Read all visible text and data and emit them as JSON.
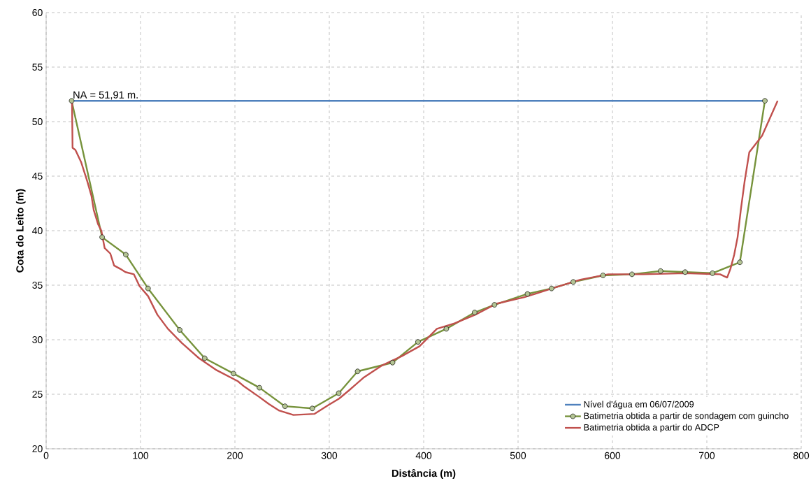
{
  "chart_data": {
    "type": "line",
    "xlabel": "Distância (m)",
    "ylabel": "Cota do Leito (m)",
    "xlim": [
      0,
      800
    ],
    "ylim": [
      20,
      60
    ],
    "xticks": [
      0,
      100,
      200,
      300,
      400,
      500,
      600,
      700,
      800
    ],
    "yticks": [
      20,
      25,
      30,
      35,
      40,
      45,
      50,
      55,
      60
    ],
    "grid": true,
    "legend": "bottom right",
    "annotations": [
      {
        "text": "NA = 51,91 m.",
        "x": 27,
        "y": 51.91
      }
    ],
    "series": [
      {
        "name": "Nível d'água em 06/07/2009",
        "color": "#4f81bd",
        "marker": "none",
        "x": [
          27,
          762
        ],
        "values": [
          51.91,
          51.91
        ]
      },
      {
        "name": "Batimetria obtida a partir de sondagem com guincho",
        "color": "#77933c",
        "marker": "circle",
        "x": [
          27,
          59.3,
          84.4,
          108,
          141.5,
          168,
          198.5,
          226,
          253,
          282,
          310,
          330,
          367,
          394,
          424,
          454,
          475,
          510,
          535.5,
          558.5,
          590,
          620.7,
          651,
          677,
          706,
          735,
          761.5
        ],
        "values": [
          51.91,
          39.4,
          37.8,
          34.7,
          30.9,
          28.3,
          26.9,
          25.6,
          23.9,
          23.7,
          25.1,
          27.1,
          27.9,
          29.8,
          31.0,
          32.5,
          33.2,
          34.2,
          34.7,
          35.3,
          35.9,
          36.0,
          36.3,
          36.2,
          36.1,
          37.1,
          51.91
        ]
      },
      {
        "name": "Batimetria obtida a partir do ADCP",
        "color": "#c0504d",
        "marker": "none",
        "x": [
          27.4,
          28,
          31,
          37,
          43.7,
          48,
          50.4,
          55,
          58.5,
          62,
          68,
          72,
          78.5,
          84,
          93,
          99,
          108,
          117.8,
          129,
          143.7,
          162,
          180.7,
          203,
          210,
          225,
          236,
          247,
          262,
          284.4,
          299,
          310.4,
          321.5,
          336,
          355,
          377,
          395.6,
          414,
          432.6,
          454.8,
          477,
          506.7,
          536,
          566,
          595.6,
          632.6,
          677,
          714,
          721.5,
          725,
          729,
          732.6,
          736,
          740,
          745,
          758.5,
          775
        ],
        "values": [
          51.9,
          47.6,
          47.4,
          46.3,
          44.5,
          43.2,
          41.9,
          40.6,
          40.0,
          38.4,
          37.9,
          36.8,
          36.5,
          36.2,
          36.0,
          34.9,
          34.0,
          32.3,
          31.0,
          29.7,
          28.3,
          27.2,
          26.2,
          25.7,
          24.8,
          24.1,
          23.5,
          23.1,
          23.2,
          24.0,
          24.6,
          25.4,
          26.5,
          27.6,
          28.5,
          29.4,
          31.0,
          31.5,
          32.3,
          33.3,
          33.9,
          34.7,
          35.5,
          36.0,
          36.0,
          36.1,
          36.0,
          35.7,
          36.5,
          37.8,
          39.4,
          41.9,
          44.5,
          47.2,
          48.7,
          51.9
        ]
      }
    ]
  }
}
